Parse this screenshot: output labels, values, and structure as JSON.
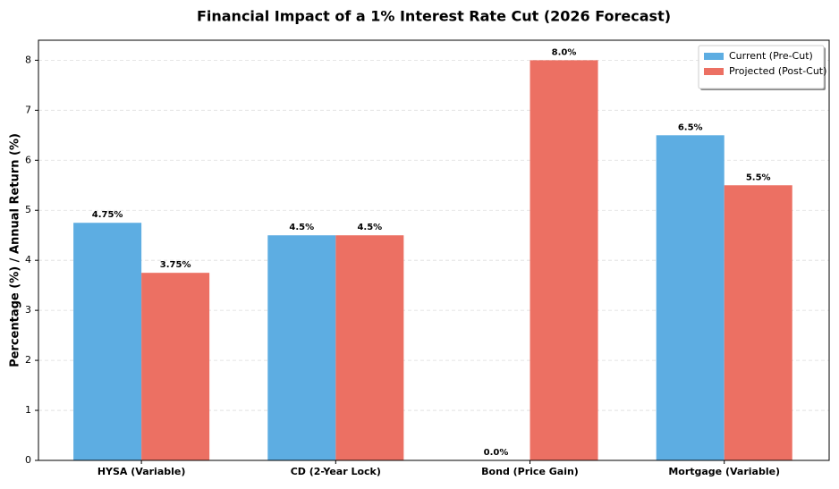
{
  "chart_data": {
    "type": "bar",
    "title": "Financial Impact of a 1% Interest Rate Cut (2026 Forecast)",
    "y_label": "Percentage (%) / Annual Return (%)",
    "categories": [
      "HYSA (Variable)",
      "CD (2-Year Lock)",
      "Bond (Price Gain)",
      "Mortgage (Variable)"
    ],
    "series": [
      {
        "name": "Current (Pre-Cut)",
        "color": "#5DADE2",
        "values": [
          4.75,
          4.5,
          0.0,
          6.5
        ],
        "value_labels": [
          "4.75%",
          "4.5%",
          "0.0%",
          "6.5%"
        ]
      },
      {
        "name": "Projected (Post-Cut)",
        "color": "#EC7063",
        "values": [
          3.75,
          4.5,
          8.0,
          5.5
        ],
        "value_labels": [
          "3.75%",
          "4.5%",
          "8.0%",
          "5.5%"
        ]
      }
    ],
    "ylim": [
      0,
      8.4
    ],
    "yticks": [
      0,
      1,
      2,
      3,
      4,
      5,
      6,
      7,
      8
    ],
    "grid": true,
    "legend": "upper right"
  }
}
